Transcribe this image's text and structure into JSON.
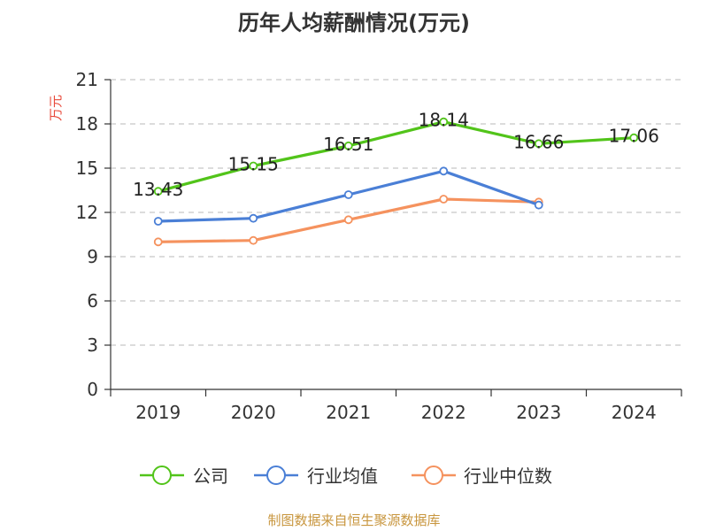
{
  "chart_data": {
    "type": "line",
    "title": "历年人均薪酬情况(万元)",
    "ylabel": "万元",
    "xlabel": "",
    "categories": [
      "2019",
      "2020",
      "2021",
      "2022",
      "2023",
      "2024"
    ],
    "ylim": [
      0,
      21
    ],
    "yticks": [
      0,
      3,
      6,
      9,
      12,
      15,
      18,
      21
    ],
    "grid": true,
    "legend_position": "bottom",
    "series": [
      {
        "name": "公司",
        "color": "#52c41a",
        "values": [
          13.43,
          15.15,
          16.51,
          18.14,
          16.66,
          17.06
        ],
        "labels": [
          "13.43",
          "15.15",
          "16.51",
          "18.14",
          "16.66",
          "17.06"
        ]
      },
      {
        "name": "行业均值",
        "color": "#4a7fd6",
        "values": [
          11.4,
          11.6,
          13.2,
          14.8,
          12.5,
          null
        ]
      },
      {
        "name": "行业中位数",
        "color": "#f5925e",
        "values": [
          10.0,
          10.1,
          11.5,
          12.9,
          12.7,
          null
        ]
      }
    ]
  },
  "source": "制图数据来自恒生聚源数据库"
}
